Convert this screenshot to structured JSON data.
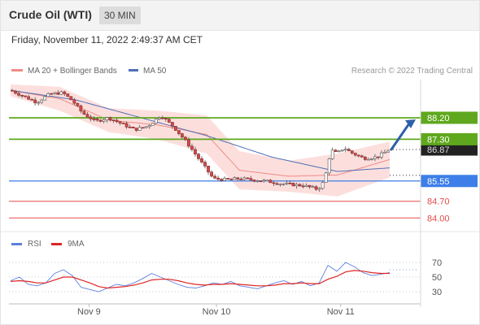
{
  "header": {
    "title": "Crude Oil (WTI)",
    "timeframe": "30 MIN"
  },
  "timestamp": "Friday, November 11, 2022 2:49:37 AM CET",
  "legend": {
    "bb_label": "MA 20 + Bollinger Bands",
    "ma50_label": "MA 50",
    "credit": "Research © 2022 Trading Central",
    "rsi_label": "RSI",
    "ma9_label": "9MA"
  },
  "colors": {
    "green_level": "#5fa81e",
    "blue_level": "#3d7ee8",
    "red_level": "#e54b4b",
    "bull_candle": "#ffffff",
    "bear_candle": "#d04a4a",
    "bb_fill": "#fbd4d2",
    "ma50": "#4f6fb7",
    "rsi": "#5b7fe0",
    "rsi_ma": "#e02424"
  },
  "chart_data": [
    {
      "type": "line",
      "subtype": "candlestick",
      "x_ticks": [
        "Nov 9",
        "Nov 10",
        "Nov 11"
      ],
      "ylim": [
        83.6,
        89.8
      ],
      "price_path": [
        {
          "t": 0,
          "price": 89.35
        },
        {
          "t": 4,
          "price": 89.1
        },
        {
          "t": 8,
          "price": 88.85
        },
        {
          "t": 12,
          "price": 89.2
        },
        {
          "t": 16,
          "price": 89.25
        },
        {
          "t": 19,
          "price": 88.9
        },
        {
          "t": 22,
          "price": 88.4
        },
        {
          "t": 26,
          "price": 88.05
        },
        {
          "t": 30,
          "price": 88.2
        },
        {
          "t": 34,
          "price": 87.95
        },
        {
          "t": 38,
          "price": 87.7
        },
        {
          "t": 42,
          "price": 87.85
        },
        {
          "t": 46,
          "price": 88.3
        },
        {
          "t": 50,
          "price": 87.8
        },
        {
          "t": 54,
          "price": 87.15
        },
        {
          "t": 58,
          "price": 86.4
        },
        {
          "t": 62,
          "price": 85.65
        },
        {
          "t": 66,
          "price": 85.6
        },
        {
          "t": 70,
          "price": 85.65
        },
        {
          "t": 74,
          "price": 85.6
        },
        {
          "t": 78,
          "price": 85.55
        },
        {
          "t": 82,
          "price": 85.45
        },
        {
          "t": 86,
          "price": 85.4
        },
        {
          "t": 90,
          "price": 85.35
        },
        {
          "t": 94,
          "price": 85.2
        },
        {
          "t": 96,
          "price": 85.55
        },
        {
          "t": 98,
          "price": 86.85
        },
        {
          "t": 100,
          "price": 86.7
        },
        {
          "t": 102,
          "price": 86.95
        },
        {
          "t": 104,
          "price": 86.75
        },
        {
          "t": 108,
          "price": 86.5
        },
        {
          "t": 112,
          "price": 86.55
        },
        {
          "t": 116,
          "price": 86.87
        }
      ],
      "ma50": [
        {
          "t": 0,
          "price": 89.35
        },
        {
          "t": 20,
          "price": 88.95
        },
        {
          "t": 40,
          "price": 88.2
        },
        {
          "t": 60,
          "price": 87.45
        },
        {
          "t": 80,
          "price": 86.55
        },
        {
          "t": 100,
          "price": 85.95
        },
        {
          "t": 116,
          "price": 86.1
        }
      ],
      "bollinger": {
        "upper": [
          {
            "t": 0,
            "price": 89.6
          },
          {
            "t": 15,
            "price": 89.5
          },
          {
            "t": 30,
            "price": 88.6
          },
          {
            "t": 45,
            "price": 88.5
          },
          {
            "t": 60,
            "price": 88.3
          },
          {
            "t": 70,
            "price": 86.8
          },
          {
            "t": 85,
            "price": 86.4
          },
          {
            "t": 100,
            "price": 86.7
          },
          {
            "t": 116,
            "price": 87.2
          }
        ],
        "lower": [
          {
            "t": 0,
            "price": 89.1
          },
          {
            "t": 15,
            "price": 88.5
          },
          {
            "t": 30,
            "price": 87.6
          },
          {
            "t": 45,
            "price": 87.3
          },
          {
            "t": 60,
            "price": 86.7
          },
          {
            "t": 70,
            "price": 85.2
          },
          {
            "t": 85,
            "price": 85.1
          },
          {
            "t": 100,
            "price": 84.9
          },
          {
            "t": 116,
            "price": 85.7
          }
        ]
      },
      "levels": [
        {
          "label": "88.20",
          "price": 88.2,
          "kind": "resistance",
          "color": "#5fa81e"
        },
        {
          "label": "87.30",
          "price": 87.3,
          "kind": "resistance",
          "color": "#5fa81e"
        },
        {
          "label": "85.55",
          "price": 85.55,
          "kind": "pivot",
          "color": "#3d7ee8"
        },
        {
          "label": "84.70",
          "price": 84.7,
          "kind": "support",
          "color": "#e54b4b"
        },
        {
          "label": "84.00",
          "price": 84.0,
          "kind": "support",
          "color": "#e54b4b"
        }
      ],
      "last_price": {
        "label": "86.87",
        "price": 86.87
      },
      "forecast_arrow": {
        "from_price": 86.87,
        "to_price": 88.2,
        "direction": "up"
      }
    },
    {
      "type": "line",
      "title": "RSI",
      "ylim": [
        20,
        80
      ],
      "y_ticks": [
        70,
        50,
        30
      ],
      "series": [
        {
          "name": "RSI",
          "values": [
            45,
            50,
            40,
            38,
            42,
            55,
            60,
            52,
            36,
            33,
            30,
            35,
            40,
            38,
            42,
            48,
            55,
            50,
            45,
            40,
            36,
            35,
            38,
            42,
            40,
            44,
            38,
            36,
            34,
            38,
            42,
            45,
            40,
            44,
            38,
            42,
            66,
            58,
            70,
            64,
            56,
            52,
            54,
            56
          ]
        },
        {
          "name": "9MA",
          "values": [
            44,
            45,
            44,
            42,
            42,
            46,
            50,
            50,
            46,
            42,
            37,
            35,
            36,
            37,
            39,
            42,
            46,
            47,
            47,
            45,
            42,
            40,
            39,
            40,
            40,
            41,
            40,
            39,
            38,
            38,
            39,
            41,
            41,
            42,
            41,
            41,
            47,
            51,
            57,
            59,
            58,
            56,
            55,
            55
          ]
        }
      ]
    }
  ]
}
